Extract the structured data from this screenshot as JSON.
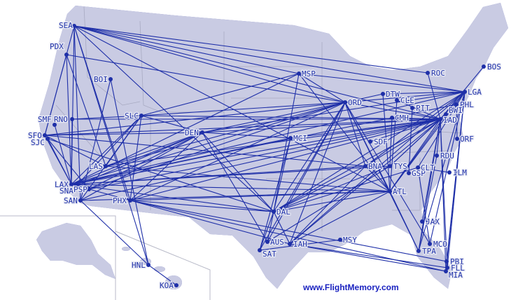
{
  "map": {
    "credit": "www.FlightMemory.com",
    "colors": {
      "land": "#c9cbe3",
      "route": "#1e2fa8",
      "border": "#a0a2b8",
      "label": "#2233aa"
    },
    "airports": [
      "SEA",
      "PDX",
      "BOI",
      "MSP",
      "ROC",
      "BOS",
      "DTW",
      "CLE",
      "ORD",
      "PIT",
      "LGA",
      "PHL",
      "BWI",
      "IAD",
      "CMH",
      "SDF",
      "MCI",
      "DEN",
      "SLC",
      "RNO",
      "SMF",
      "SFO",
      "SJC",
      "LAS",
      "LAX",
      "SNA",
      "PSP",
      "SAN",
      "PHX",
      "HNL",
      "KOA",
      "DAL",
      "AUS",
      "SAT",
      "IAH",
      "MSY",
      "BNA",
      "TYS",
      "GSP",
      "CLT",
      "ATL",
      "RDU",
      "ILM",
      "ORF",
      "JAX",
      "MCO",
      "TPA",
      "PBI",
      "FLL",
      "MIA"
    ],
    "routes": [
      [
        "SEA",
        "LAX"
      ],
      [
        "SEA",
        "SAN"
      ],
      [
        "SEA",
        "PHX"
      ],
      [
        "SEA",
        "ORD"
      ],
      [
        "SEA",
        "LGA"
      ],
      [
        "SEA",
        "IAD"
      ],
      [
        "SEA",
        "MSP"
      ],
      [
        "SEA",
        "ROC"
      ],
      [
        "SEA",
        "SFO"
      ],
      [
        "SEA",
        "DAL"
      ],
      [
        "SEA",
        "HNL"
      ],
      [
        "SEA",
        "ATL"
      ],
      [
        "PDX",
        "LAX"
      ],
      [
        "PDX",
        "SFO"
      ],
      [
        "PDX",
        "ORD"
      ],
      [
        "PDX",
        "LAS"
      ],
      [
        "BOI",
        "SAN"
      ],
      [
        "BOI",
        "HNL"
      ],
      [
        "SFO",
        "ORD"
      ],
      [
        "SFO",
        "IAD"
      ],
      [
        "SFO",
        "DEN"
      ],
      [
        "SFO",
        "LAX"
      ],
      [
        "SFO",
        "BNA"
      ],
      [
        "SFO",
        "LAS"
      ],
      [
        "SJC",
        "LAX"
      ],
      [
        "SJC",
        "DAL"
      ],
      [
        "SJC",
        "PSP"
      ],
      [
        "SMF",
        "LAX"
      ],
      [
        "RNO",
        "SLC"
      ],
      [
        "RNO",
        "LAX"
      ],
      [
        "RNO",
        "IAD"
      ],
      [
        "LAX",
        "ORD"
      ],
      [
        "LAX",
        "IAD"
      ],
      [
        "LAX",
        "LGA"
      ],
      [
        "LAX",
        "DEN"
      ],
      [
        "LAX",
        "SLC"
      ],
      [
        "LAX",
        "DAL"
      ],
      [
        "LAX",
        "ATL"
      ],
      [
        "LAX",
        "BNA"
      ],
      [
        "LAX",
        "MCI"
      ],
      [
        "LAX",
        "IAH"
      ],
      [
        "LAX",
        "MSP"
      ],
      [
        "LAX",
        "TYS"
      ],
      [
        "LAX",
        "PHL"
      ],
      [
        "SNA",
        "DEN"
      ],
      [
        "SNA",
        "SLC"
      ],
      [
        "PSP",
        "ORD"
      ],
      [
        "PSP",
        "DEN"
      ],
      [
        "PSP",
        "IAD"
      ],
      [
        "SAN",
        "HNL"
      ],
      [
        "SAN",
        "IAD"
      ],
      [
        "SAN",
        "ATL"
      ],
      [
        "SAN",
        "SLC"
      ],
      [
        "SAN",
        "DEN"
      ],
      [
        "LAS",
        "ORD"
      ],
      [
        "LAS",
        "IAD"
      ],
      [
        "LAS",
        "SLC"
      ],
      [
        "LAS",
        "DEN"
      ],
      [
        "LAS",
        "ATL"
      ],
      [
        "PHX",
        "ORD"
      ],
      [
        "PHX",
        "IAD"
      ],
      [
        "PHX",
        "DAL"
      ],
      [
        "PHX",
        "MIA"
      ],
      [
        "PHX",
        "PBI"
      ],
      [
        "PHX",
        "ATL"
      ],
      [
        "PHX",
        "DEN"
      ],
      [
        "PHX",
        "SLC"
      ],
      [
        "SLC",
        "IAD"
      ],
      [
        "SLC",
        "ORD"
      ],
      [
        "SLC",
        "MSP"
      ],
      [
        "SLC",
        "DEN"
      ],
      [
        "DEN",
        "ORD"
      ],
      [
        "DEN",
        "IAD"
      ],
      [
        "DEN",
        "LGA"
      ],
      [
        "DEN",
        "DAL"
      ],
      [
        "DEN",
        "MCI"
      ],
      [
        "DEN",
        "AUS"
      ],
      [
        "MSP",
        "ORD"
      ],
      [
        "MSP",
        "DAL"
      ],
      [
        "MSP",
        "LGA"
      ],
      [
        "MSP",
        "ATL"
      ],
      [
        "ORD",
        "LGA"
      ],
      [
        "ORD",
        "IAD"
      ],
      [
        "ORD",
        "ATL"
      ],
      [
        "ORD",
        "DAL"
      ],
      [
        "ORD",
        "IAH"
      ],
      [
        "ORD",
        "BNA"
      ],
      [
        "ORD",
        "SAT"
      ],
      [
        "ORD",
        "AUS"
      ],
      [
        "ORD",
        "MCO"
      ],
      [
        "ORD",
        "TPA"
      ],
      [
        "DTW",
        "LGA"
      ],
      [
        "DTW",
        "ORD"
      ],
      [
        "CLE",
        "ATL"
      ],
      [
        "CLE",
        "IAD"
      ],
      [
        "PIT",
        "GSP"
      ],
      [
        "CMH",
        "IAD"
      ],
      [
        "CMH",
        "TYS"
      ],
      [
        "IAD",
        "MCI"
      ],
      [
        "IAD",
        "DAL"
      ],
      [
        "IAD",
        "IAH"
      ],
      [
        "IAD",
        "ATL"
      ],
      [
        "IAD",
        "BNA"
      ],
      [
        "IAD",
        "RDU"
      ],
      [
        "IAD",
        "JAX"
      ],
      [
        "IAD",
        "TPA"
      ],
      [
        "IAD",
        "MIA"
      ],
      [
        "IAD",
        "FLL"
      ],
      [
        "IAD",
        "SDF"
      ],
      [
        "IAD",
        "TYS"
      ],
      [
        "IAD",
        "ROC"
      ],
      [
        "IAD",
        "BOS"
      ],
      [
        "IAD",
        "LGA"
      ],
      [
        "LGA",
        "ATL"
      ],
      [
        "LGA",
        "DAL"
      ],
      [
        "LGA",
        "IAH"
      ],
      [
        "LGA",
        "MIA"
      ],
      [
        "LGA",
        "FLL"
      ],
      [
        "LGA",
        "PBI"
      ],
      [
        "LGA",
        "TPA"
      ],
      [
        "LGA",
        "CLT"
      ],
      [
        "LGA",
        "BNA"
      ],
      [
        "LGA",
        "MCO"
      ],
      [
        "PHL",
        "ORF"
      ],
      [
        "BWI",
        "ATL"
      ],
      [
        "BWI",
        "TYS"
      ],
      [
        "ATL",
        "DAL"
      ],
      [
        "ATL",
        "IAH"
      ],
      [
        "ATL",
        "BNA"
      ],
      [
        "ATL",
        "TPA"
      ],
      [
        "ATL",
        "DTW"
      ],
      [
        "DAL",
        "AUS"
      ],
      [
        "DAL",
        "SAT"
      ],
      [
        "DAL",
        "IAH"
      ],
      [
        "DAL",
        "BNA"
      ],
      [
        "DAL",
        "TYS"
      ],
      [
        "DAL",
        "CLT"
      ],
      [
        "DAL",
        "MCI"
      ],
      [
        "IAH",
        "MIA"
      ],
      [
        "IAH",
        "FLL"
      ],
      [
        "IAH",
        "BNA"
      ],
      [
        "AUS",
        "TYS"
      ],
      [
        "SAT",
        "MSY"
      ],
      [
        "SAT",
        "MCI"
      ],
      [
        "KOA",
        "HNL"
      ],
      [
        "CLT",
        "ILM"
      ],
      [
        "RDU",
        "TPA"
      ],
      [
        "MCO",
        "CLT"
      ]
    ]
  }
}
